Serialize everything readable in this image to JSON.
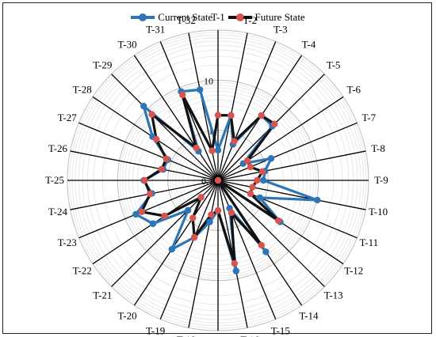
{
  "chart_data": {
    "type": "radar",
    "scale": "log",
    "rlim": [
      0.1,
      100
    ],
    "radial_ticks": [
      "0.1",
      "1",
      "10"
    ],
    "categories": [
      "T-1",
      "T-2",
      "T-3",
      "T-4",
      "T-5",
      "T-6",
      "T-7",
      "T-8",
      "T-9",
      "T-10",
      "T-11",
      "T-12",
      "T-13",
      "T-14",
      "T-15",
      "T-16",
      "T-17",
      "T-18",
      "T-19",
      "T-20",
      "T-21",
      "T-22",
      "T-23",
      "T-24",
      "T-25",
      "T-26",
      "T-27",
      "T-28",
      "T-29",
      "T-30",
      "T-31",
      "T-32"
    ],
    "series": [
      {
        "name": "Current State",
        "color": "#2E75B6",
        "values": [
          0.4,
          2.1,
          0.6,
          3.6,
          3.4,
          0.4,
          1.4,
          0.9,
          0.8,
          10.4,
          0.8,
          3.1,
          0.1,
          5.2,
          0.4,
          7.0,
          0.4,
          0.7,
          1.7,
          4.5,
          0.7,
          3.6,
          5.9,
          2.2,
          3.0,
          1.3,
          1.2,
          3.7,
          12.4,
          0.5,
          8.3,
          7.0
        ]
      },
      {
        "name": "Future State",
        "color": "#111111",
        "values": [
          2.0,
          2.1,
          0.7,
          3.6,
          3.9,
          0.5,
          0.5,
          0.8,
          0.6,
          0.5,
          0.5,
          2.8,
          0.1,
          3.6,
          0.5,
          4.9,
          0.4,
          0.5,
          1.7,
          0.8,
          0.3,
          1.9,
          4.4,
          2.4,
          2.9,
          1.4,
          1.3,
          3.0,
          7.3,
          0.6,
          7.0,
          0.4
        ]
      }
    ],
    "legend": [
      "Current State",
      "Future State"
    ],
    "legend_position": "top",
    "grid": true
  }
}
